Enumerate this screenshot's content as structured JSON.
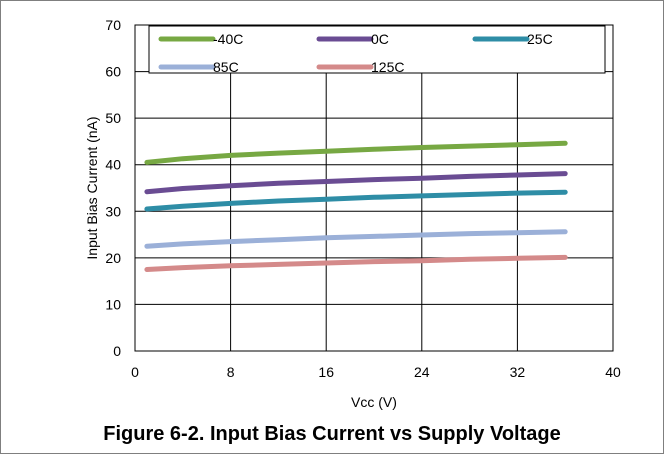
{
  "figure": {
    "caption": "Figure 6-2. Input Bias Current vs Supply Voltage"
  },
  "chart_data": {
    "type": "line",
    "title": "",
    "xlabel": "Vcc (V)",
    "ylabel": "Input Bias Current (nA)",
    "xlim": [
      0,
      40
    ],
    "ylim": [
      0,
      70
    ],
    "xticks": [
      0,
      8,
      16,
      24,
      32,
      40
    ],
    "yticks": [
      0,
      10,
      20,
      30,
      40,
      50,
      60,
      70
    ],
    "grid": true,
    "legend_position": "top",
    "series": [
      {
        "name": "-40C",
        "color": "#77a843",
        "x": [
          1,
          4,
          8,
          12,
          16,
          20,
          24,
          28,
          32,
          36
        ],
        "y": [
          40.5,
          41.3,
          42.0,
          42.5,
          42.9,
          43.3,
          43.7,
          44.0,
          44.3,
          44.6
        ]
      },
      {
        "name": "0C",
        "color": "#6a4c93",
        "x": [
          1,
          4,
          8,
          12,
          16,
          20,
          24,
          28,
          32,
          36
        ],
        "y": [
          34.2,
          34.9,
          35.5,
          36.0,
          36.4,
          36.8,
          37.1,
          37.5,
          37.8,
          38.1
        ]
      },
      {
        "name": "25C",
        "color": "#2e8da6",
        "x": [
          1,
          4,
          8,
          12,
          16,
          20,
          24,
          28,
          32,
          36
        ],
        "y": [
          30.5,
          31.1,
          31.7,
          32.2,
          32.6,
          33.0,
          33.3,
          33.6,
          33.9,
          34.1
        ]
      },
      {
        "name": "85C",
        "color": "#9bb0d8",
        "x": [
          1,
          4,
          8,
          12,
          16,
          20,
          24,
          28,
          32,
          36
        ],
        "y": [
          22.5,
          23.0,
          23.5,
          23.9,
          24.3,
          24.6,
          24.9,
          25.2,
          25.4,
          25.6
        ]
      },
      {
        "name": "125C",
        "color": "#d48a8a",
        "x": [
          1,
          4,
          8,
          12,
          16,
          20,
          24,
          28,
          32,
          36
        ],
        "y": [
          17.5,
          17.9,
          18.3,
          18.6,
          18.9,
          19.2,
          19.4,
          19.7,
          19.9,
          20.1
        ]
      }
    ]
  }
}
